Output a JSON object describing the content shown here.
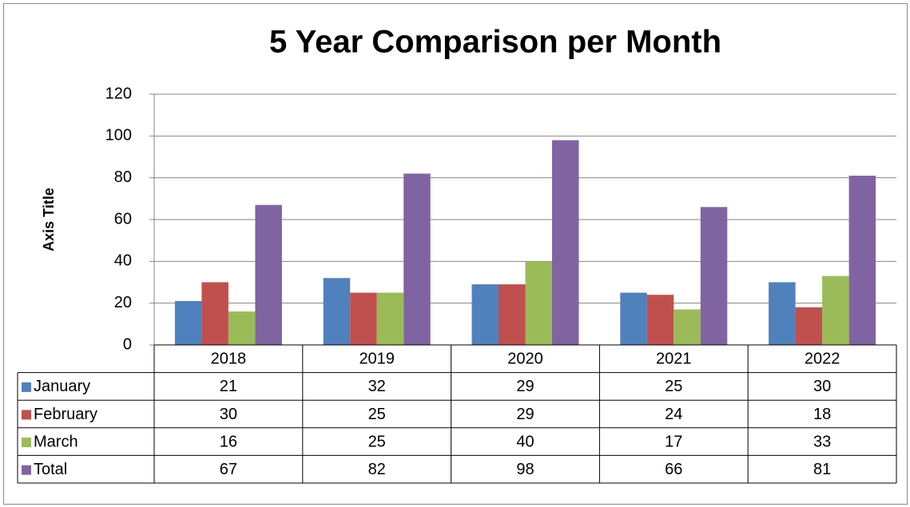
{
  "chart_data": {
    "type": "bar",
    "title": "5 Year Comparison per Month",
    "y_label": "Axis Title",
    "categories": [
      "2018",
      "2019",
      "2020",
      "2021",
      "2022"
    ],
    "series": [
      {
        "name": "January",
        "color": "#4f81bd",
        "values": [
          21,
          32,
          29,
          25,
          30
        ]
      },
      {
        "name": "February",
        "color": "#c0504d",
        "values": [
          30,
          25,
          29,
          24,
          18
        ]
      },
      {
        "name": "March",
        "color": "#9bbb59",
        "values": [
          16,
          25,
          40,
          17,
          33
        ]
      },
      {
        "name": "Total",
        "color": "#8064a2",
        "values": [
          67,
          82,
          98,
          66,
          81
        ]
      }
    ],
    "ylim": [
      0,
      120
    ],
    "yticks": [
      0,
      20,
      40,
      60,
      80,
      100,
      120
    ],
    "grid": true,
    "data_table": true
  }
}
